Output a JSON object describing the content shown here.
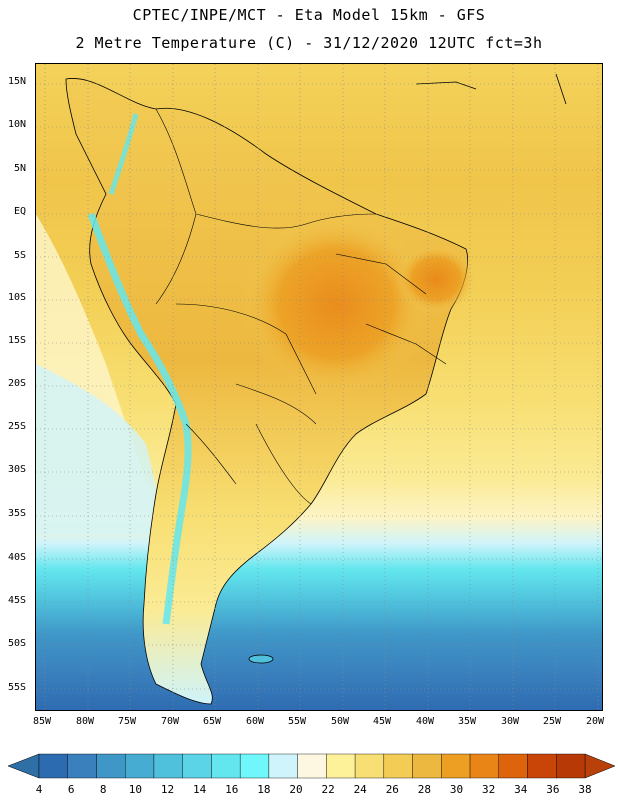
{
  "title": {
    "line1": "CPTEC/INPE/MCT -  Eta Model 15km - GFS",
    "line2": "2 Metre Temperature (C) - 31/12/2020 12UTC fct=3h"
  },
  "map": {
    "region": "South America",
    "variable": "2 Metre Temperature",
    "units": "C"
  },
  "lat_labels": [
    "15N",
    "10N",
    "5N",
    "EQ",
    "5S",
    "10S",
    "15S",
    "20S",
    "25S",
    "30S",
    "35S",
    "40S",
    "45S",
    "50S",
    "55S"
  ],
  "lon_labels": [
    "85W",
    "80W",
    "75W",
    "70W",
    "65W",
    "60W",
    "55W",
    "50W",
    "45W",
    "40W",
    "35W",
    "30W",
    "25W",
    "20W"
  ],
  "colorbar": {
    "labels": [
      "4",
      "6",
      "8",
      "10",
      "12",
      "14",
      "16",
      "18",
      "20",
      "22",
      "24",
      "26",
      "28",
      "30",
      "32",
      "34",
      "36",
      "38"
    ],
    "colors": [
      "#2d6bb0",
      "#3a80bd",
      "#3f97c8",
      "#46acd2",
      "#4fc1dc",
      "#5ad4e6",
      "#63e6ee",
      "#6ff7fb",
      "#cff4fb",
      "#fdf7e2",
      "#fdf19a",
      "#f8df73",
      "#f2cc55",
      "#edb83f",
      "#ec9f22",
      "#e98416",
      "#dd640d",
      "#c84507",
      "#b73a06"
    ],
    "extend_low_color": "#2e6fa5",
    "extend_high_color": "#b9400a"
  }
}
